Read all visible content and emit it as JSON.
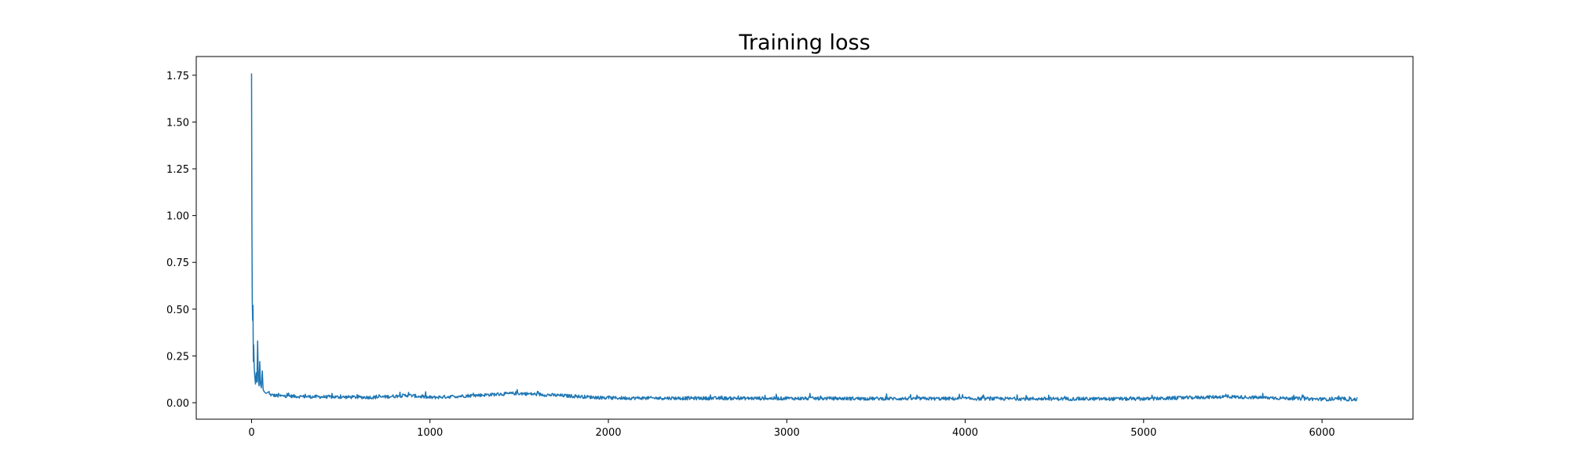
{
  "chart_data": {
    "type": "line",
    "title": "Training loss",
    "xlabel": "",
    "ylabel": "",
    "xlim": [
      -310,
      6510
    ],
    "ylim": [
      -0.088,
      1.85
    ],
    "x_ticks": [
      0,
      1000,
      2000,
      3000,
      4000,
      5000,
      6000
    ],
    "x_tick_labels": [
      "0",
      "1000",
      "2000",
      "3000",
      "4000",
      "5000",
      "6000"
    ],
    "y_ticks": [
      0.0,
      0.25,
      0.5,
      0.75,
      1.0,
      1.25,
      1.5,
      1.75
    ],
    "y_tick_labels": [
      "0.00",
      "0.25",
      "0.50",
      "0.75",
      "1.00",
      "1.25",
      "1.50",
      "1.75"
    ],
    "grid": false,
    "legend": "none",
    "series": [
      {
        "color": "#1f77b4",
        "x_range": [
          0,
          6200
        ],
        "points": [
          [
            0,
            1.76
          ],
          [
            2,
            0.95
          ],
          [
            4,
            0.55
          ],
          [
            6,
            0.44
          ],
          [
            8,
            0.52
          ],
          [
            10,
            0.22
          ],
          [
            12,
            0.31
          ],
          [
            15,
            0.19
          ],
          [
            18,
            0.14
          ],
          [
            22,
            0.1
          ],
          [
            26,
            0.16
          ],
          [
            30,
            0.11
          ],
          [
            34,
            0.33
          ],
          [
            38,
            0.12
          ],
          [
            42,
            0.09
          ],
          [
            46,
            0.22
          ],
          [
            50,
            0.1
          ],
          [
            55,
            0.08
          ],
          [
            60,
            0.17
          ],
          [
            65,
            0.07
          ],
          [
            70,
            0.06
          ],
          [
            80,
            0.05
          ],
          [
            100,
            0.06
          ],
          [
            150,
            0.05
          ],
          [
            200,
            0.05
          ],
          [
            300,
            0.045
          ],
          [
            500,
            0.042
          ],
          [
            700,
            0.04
          ],
          [
            880,
            0.055
          ],
          [
            1000,
            0.038
          ],
          [
            1490,
            0.07
          ],
          [
            2000,
            0.035
          ],
          [
            3000,
            0.032
          ],
          [
            4000,
            0.03
          ],
          [
            5000,
            0.028
          ],
          [
            5460,
            0.045
          ],
          [
            6000,
            0.026
          ],
          [
            6200,
            0.025
          ]
        ]
      }
    ]
  }
}
